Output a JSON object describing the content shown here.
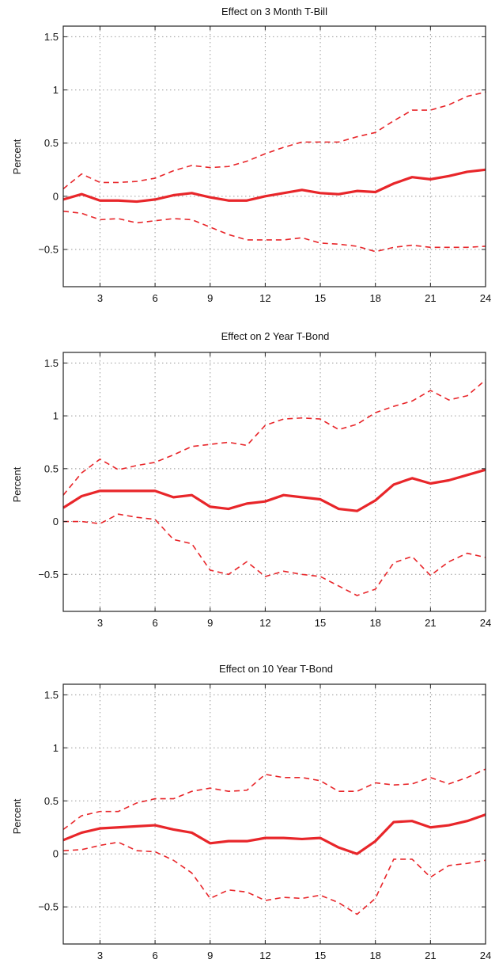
{
  "chart_data": [
    {
      "type": "line",
      "title": "Effect on 3 Month T-Bill",
      "xlabel": "",
      "ylabel": "Percent",
      "xlim": [
        1,
        24
      ],
      "ylim": [
        -0.85,
        1.6
      ],
      "xticks": [
        3,
        6,
        9,
        12,
        15,
        18,
        21,
        24
      ],
      "yticks": [
        -0.5,
        0,
        0.5,
        1,
        1.5
      ],
      "ytick_labels": [
        "−0.5",
        "0",
        "0.5",
        "1",
        "1.5"
      ],
      "grid": true,
      "colors": {
        "line": "#e8262a"
      },
      "x": [
        1,
        2,
        3,
        4,
        5,
        6,
        7,
        8,
        9,
        10,
        11,
        12,
        13,
        14,
        15,
        16,
        17,
        18,
        19,
        20,
        21,
        22,
        23,
        24
      ],
      "series": [
        {
          "style": "solid",
          "values": [
            -0.03,
            0.02,
            -0.04,
            -0.04,
            -0.05,
            -0.03,
            0.01,
            0.03,
            -0.01,
            -0.04,
            -0.04,
            0.0,
            0.03,
            0.06,
            0.03,
            0.02,
            0.05,
            0.04,
            0.12,
            0.18,
            0.16,
            0.19,
            0.23,
            0.25
          ]
        },
        {
          "style": "dashed",
          "values": [
            0.07,
            0.21,
            0.13,
            0.13,
            0.14,
            0.17,
            0.24,
            0.29,
            0.27,
            0.28,
            0.33,
            0.4,
            0.46,
            0.51,
            0.51,
            0.51,
            0.56,
            0.6,
            0.71,
            0.81,
            0.81,
            0.86,
            0.94,
            0.98
          ]
        },
        {
          "style": "dashed",
          "values": [
            -0.14,
            -0.16,
            -0.22,
            -0.21,
            -0.25,
            -0.23,
            -0.21,
            -0.22,
            -0.29,
            -0.36,
            -0.41,
            -0.41,
            -0.41,
            -0.39,
            -0.44,
            -0.45,
            -0.47,
            -0.52,
            -0.48,
            -0.46,
            -0.48,
            -0.48,
            -0.48,
            -0.47
          ]
        }
      ]
    },
    {
      "type": "line",
      "title": "Effect on 2 Year T-Bond",
      "xlabel": "",
      "ylabel": "Percent",
      "xlim": [
        1,
        24
      ],
      "ylim": [
        -0.85,
        1.6
      ],
      "xticks": [
        3,
        6,
        9,
        12,
        15,
        18,
        21,
        24
      ],
      "yticks": [
        -0.5,
        0,
        0.5,
        1,
        1.5
      ],
      "ytick_labels": [
        "−0.5",
        "0",
        "0.5",
        "1",
        "1.5"
      ],
      "grid": true,
      "colors": {
        "line": "#e8262a"
      },
      "x": [
        1,
        2,
        3,
        4,
        5,
        6,
        7,
        8,
        9,
        10,
        11,
        12,
        13,
        14,
        15,
        16,
        17,
        18,
        19,
        20,
        21,
        22,
        23,
        24
      ],
      "series": [
        {
          "style": "solid",
          "values": [
            0.13,
            0.24,
            0.29,
            0.29,
            0.29,
            0.29,
            0.23,
            0.25,
            0.14,
            0.12,
            0.17,
            0.19,
            0.25,
            0.23,
            0.21,
            0.12,
            0.1,
            0.2,
            0.35,
            0.41,
            0.36,
            0.39,
            0.44,
            0.49
          ]
        },
        {
          "style": "dashed",
          "values": [
            0.25,
            0.46,
            0.59,
            0.49,
            0.53,
            0.56,
            0.63,
            0.71,
            0.73,
            0.75,
            0.72,
            0.91,
            0.97,
            0.98,
            0.97,
            0.87,
            0.92,
            1.03,
            1.09,
            1.14,
            1.24,
            1.15,
            1.19,
            1.34
          ]
        },
        {
          "style": "dashed",
          "values": [
            0.0,
            0.0,
            -0.02,
            0.07,
            0.04,
            0.02,
            -0.17,
            -0.21,
            -0.46,
            -0.5,
            -0.38,
            -0.52,
            -0.47,
            -0.5,
            -0.52,
            -0.61,
            -0.7,
            -0.64,
            -0.39,
            -0.33,
            -0.51,
            -0.38,
            -0.3,
            -0.34
          ]
        }
      ]
    },
    {
      "type": "line",
      "title": "Effect on 10 Year T-Bond",
      "xlabel": "",
      "ylabel": "Percent",
      "xlim": [
        1,
        24
      ],
      "ylim": [
        -0.85,
        1.6
      ],
      "xticks": [
        3,
        6,
        9,
        12,
        15,
        18,
        21,
        24
      ],
      "yticks": [
        -0.5,
        0,
        0.5,
        1,
        1.5
      ],
      "ytick_labels": [
        "−0.5",
        "0",
        "0.5",
        "1",
        "1.5"
      ],
      "grid": true,
      "colors": {
        "line": "#e8262a"
      },
      "x": [
        1,
        2,
        3,
        4,
        5,
        6,
        7,
        8,
        9,
        10,
        11,
        12,
        13,
        14,
        15,
        16,
        17,
        18,
        19,
        20,
        21,
        22,
        23,
        24
      ],
      "series": [
        {
          "style": "solid",
          "values": [
            0.13,
            0.2,
            0.24,
            0.25,
            0.26,
            0.27,
            0.23,
            0.2,
            0.1,
            0.12,
            0.12,
            0.15,
            0.15,
            0.14,
            0.15,
            0.06,
            0.0,
            0.12,
            0.3,
            0.31,
            0.25,
            0.27,
            0.31,
            0.37
          ]
        },
        {
          "style": "dashed",
          "values": [
            0.23,
            0.36,
            0.4,
            0.4,
            0.48,
            0.52,
            0.52,
            0.59,
            0.62,
            0.59,
            0.6,
            0.75,
            0.72,
            0.72,
            0.69,
            0.59,
            0.59,
            0.67,
            0.65,
            0.66,
            0.72,
            0.66,
            0.72,
            0.8
          ]
        },
        {
          "style": "dashed",
          "values": [
            0.03,
            0.04,
            0.08,
            0.11,
            0.03,
            0.02,
            -0.06,
            -0.18,
            -0.42,
            -0.34,
            -0.36,
            -0.44,
            -0.41,
            -0.42,
            -0.39,
            -0.46,
            -0.57,
            -0.42,
            -0.05,
            -0.05,
            -0.22,
            -0.11,
            -0.09,
            -0.06
          ]
        }
      ]
    }
  ]
}
